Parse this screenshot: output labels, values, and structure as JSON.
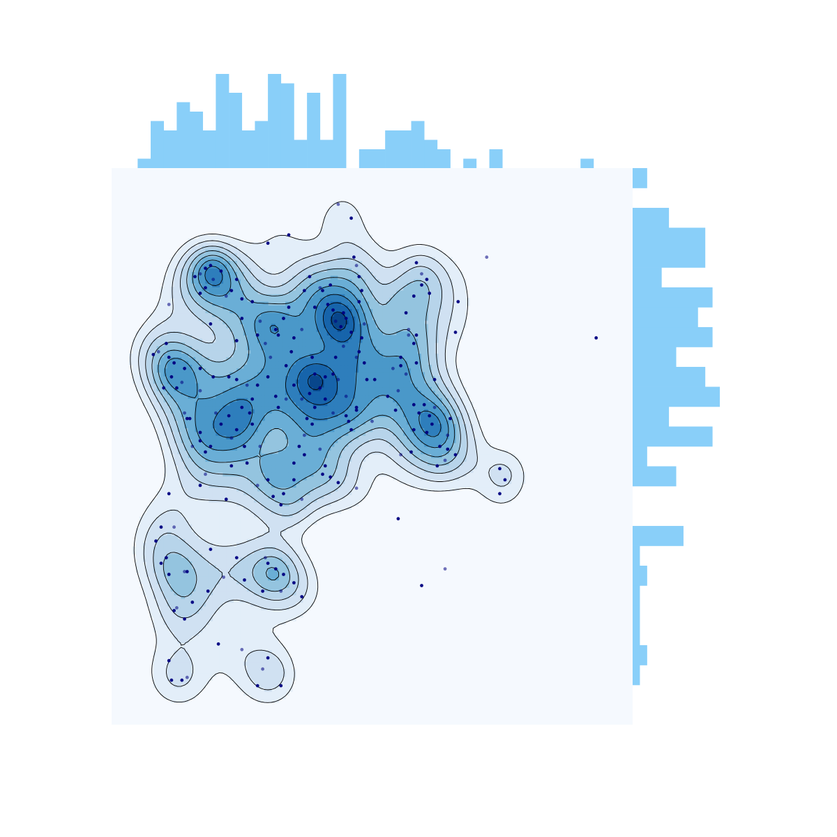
{
  "colors": {
    "marginal_bars": "#89cff9",
    "plot_background": "#f5f9fe",
    "contour_line": "#000000",
    "contour_fills": [
      "#e3eef9",
      "#d0e1f2",
      "#b7d4ea",
      "#94c4df",
      "#6aaed6",
      "#4a98c9",
      "#2e7ebc",
      "#1764ab",
      "#08468b"
    ],
    "points": "#000080"
  },
  "chart_data": {
    "type": "kde-jointplot",
    "title": "",
    "xlabel": "",
    "ylabel": "",
    "axes_visible": false,
    "grid": false,
    "legend": "none",
    "xlim": [
      0,
      100
    ],
    "ylim": [
      0,
      100
    ],
    "marginal_x": {
      "bin_edges": [
        5,
        7.5,
        10,
        12.5,
        15,
        17.5,
        20,
        22.5,
        25,
        27.5,
        30,
        32.5,
        35,
        37.5,
        40,
        42.5,
        45,
        47.5,
        50,
        52.5,
        55,
        57.5,
        60,
        62.5,
        65,
        67.5,
        70,
        72.5,
        75,
        77.5,
        80,
        82.5,
        85,
        87.5,
        90,
        92.5
      ],
      "counts": [
        1,
        5,
        4,
        7,
        6,
        4,
        10,
        8,
        4,
        5,
        10,
        9,
        3,
        8,
        3,
        10,
        0,
        2,
        2,
        4,
        4,
        5,
        3,
        2,
        0,
        1,
        0,
        2,
        0,
        0,
        0,
        0,
        0,
        0,
        1
      ]
    },
    "marginal_y": {
      "bin_edges": [
        0,
        3.57,
        7.14,
        10.71,
        14.29,
        17.86,
        21.43,
        25,
        28.57,
        32.14,
        35.71,
        39.29,
        42.86,
        46.43,
        50,
        53.57,
        57.14,
        60.71,
        64.29,
        67.86,
        71.43,
        75,
        78.57,
        82.14,
        85.71,
        89.29,
        92.86,
        96.43,
        100
      ],
      "counts": [
        0,
        0,
        1,
        2,
        1,
        1,
        1,
        2,
        1,
        7,
        0,
        0,
        6,
        2,
        11,
        5,
        12,
        10,
        6,
        11,
        9,
        11,
        4,
        10,
        10,
        5,
        0,
        2
      ]
    },
    "density_peaks": [
      {
        "x": 19.5,
        "y": 82,
        "weight": 1.0
      },
      {
        "x": 43.5,
        "y": 72.5,
        "weight": 1.0
      },
      {
        "x": 38.5,
        "y": 62.5,
        "weight": 0.9
      },
      {
        "x": 30.5,
        "y": 72.5,
        "weight": 0.5
      },
      {
        "x": 12.5,
        "y": 63.5,
        "weight": 0.55
      },
      {
        "x": 24,
        "y": 55,
        "weight": 0.55
      },
      {
        "x": 31.5,
        "y": 46,
        "weight": 0.5
      },
      {
        "x": 35,
        "y": 38.5,
        "weight": 0.25
      },
      {
        "x": 31,
        "y": 27.5,
        "weight": 0.5
      },
      {
        "x": 12.5,
        "y": 27.5,
        "weight": 0.3
      },
      {
        "x": 31,
        "y": 9.5,
        "weight": 0.3
      },
      {
        "x": 55.5,
        "y": 76,
        "weight": 0.45
      },
      {
        "x": 62.5,
        "y": 54,
        "weight": 0.45
      },
      {
        "x": 75.5,
        "y": 45.5,
        "weight": 0.3
      },
      {
        "x": 43.5,
        "y": 90,
        "weight": 0.2
      }
    ],
    "points": [
      [
        43.5,
        93.5
      ],
      [
        34,
        88
      ],
      [
        30,
        86.5
      ],
      [
        18,
        82
      ],
      [
        17,
        81
      ],
      [
        19,
        82.5
      ],
      [
        21,
        81.5
      ],
      [
        16,
        80.5
      ],
      [
        19.5,
        80
      ],
      [
        24,
        80
      ],
      [
        23,
        78
      ],
      [
        18,
        78.5
      ],
      [
        22,
        77
      ],
      [
        17,
        77.5
      ],
      [
        25,
        76.5
      ],
      [
        27,
        76
      ],
      [
        11,
        75.5
      ],
      [
        42,
        79
      ],
      [
        38,
        80.5
      ],
      [
        37,
        78
      ],
      [
        40,
        78.5
      ],
      [
        41.5,
        75.5
      ],
      [
        42.5,
        74.5
      ],
      [
        44.5,
        74
      ],
      [
        43,
        72.5
      ],
      [
        44,
        71.5
      ],
      [
        45,
        73
      ],
      [
        46,
        70.5
      ],
      [
        47,
        66
      ],
      [
        34,
        75
      ],
      [
        33,
        73
      ],
      [
        31.5,
        71
      ],
      [
        28.5,
        72.5
      ],
      [
        25,
        73
      ],
      [
        19,
        72
      ],
      [
        28,
        70
      ],
      [
        29.5,
        68.5
      ],
      [
        32,
        70
      ],
      [
        24,
        69
      ],
      [
        35,
        69.5
      ],
      [
        36.5,
        71
      ],
      [
        38.5,
        66
      ],
      [
        34.5,
        67
      ],
      [
        33.5,
        64.5
      ],
      [
        30.5,
        66
      ],
      [
        39,
        63
      ],
      [
        41,
        62.5
      ],
      [
        42.5,
        63
      ],
      [
        43.5,
        62
      ],
      [
        40,
        60.5
      ],
      [
        38,
        59.5
      ],
      [
        35,
        61
      ],
      [
        36.5,
        58.5
      ],
      [
        41,
        58.5
      ],
      [
        39,
        57
      ],
      [
        37.5,
        55
      ],
      [
        42.5,
        56
      ],
      [
        45,
        55.5
      ],
      [
        46,
        53
      ],
      [
        47,
        57
      ],
      [
        45,
        59
      ],
      [
        48.5,
        65
      ],
      [
        49,
        62
      ],
      [
        38.5,
        54
      ],
      [
        37,
        52
      ],
      [
        36,
        50
      ],
      [
        37,
        48.5
      ],
      [
        35,
        47
      ],
      [
        40,
        49.5
      ],
      [
        41,
        46.5
      ],
      [
        42,
        44.5
      ],
      [
        40.5,
        45
      ],
      [
        47,
        42.5
      ],
      [
        43.5,
        43.5
      ],
      [
        35,
        44
      ],
      [
        30,
        44
      ],
      [
        28,
        43
      ],
      [
        31,
        41
      ],
      [
        33,
        41.5
      ],
      [
        32.5,
        39.5
      ],
      [
        36.5,
        40.5
      ],
      [
        25,
        57
      ],
      [
        22.5,
        55.5
      ],
      [
        21,
        54
      ],
      [
        20,
        56
      ],
      [
        26.5,
        56
      ],
      [
        27,
        54
      ],
      [
        24,
        53
      ],
      [
        23,
        51.5
      ],
      [
        19,
        50
      ],
      [
        17,
        52.5
      ],
      [
        15,
        55
      ],
      [
        14,
        56
      ],
      [
        11.5,
        62.5
      ],
      [
        11,
        66
      ],
      [
        12,
        65
      ],
      [
        13.5,
        61.5
      ],
      [
        14,
        64
      ],
      [
        12.5,
        60.5
      ],
      [
        10,
        60.5
      ],
      [
        9,
        67
      ],
      [
        8,
        66.5
      ],
      [
        10.5,
        68.5
      ],
      [
        17,
        64
      ],
      [
        17,
        60
      ],
      [
        19.5,
        62.5
      ],
      [
        22.5,
        62.5
      ],
      [
        24,
        62
      ],
      [
        26,
        61
      ],
      [
        28,
        61
      ],
      [
        30,
        62.5
      ],
      [
        31.5,
        59
      ],
      [
        33.5,
        58.5
      ],
      [
        27,
        58.5
      ],
      [
        32,
        57
      ],
      [
        14.5,
        55
      ],
      [
        15.5,
        50
      ],
      [
        18,
        49
      ],
      [
        17,
        51
      ],
      [
        25.5,
        50
      ],
      [
        28.5,
        50
      ],
      [
        26,
        47
      ],
      [
        23,
        46.5
      ],
      [
        22,
        40.5
      ],
      [
        18,
        45
      ],
      [
        17,
        43
      ],
      [
        11,
        41.5
      ],
      [
        9.5,
        35.5
      ],
      [
        12,
        35.5
      ],
      [
        10.5,
        30
      ],
      [
        8.5,
        33
      ],
      [
        11,
        27
      ],
      [
        14,
        27.5
      ],
      [
        14.5,
        27.5
      ],
      [
        9.5,
        29
      ],
      [
        12,
        20.5
      ],
      [
        12.5,
        21
      ],
      [
        14,
        19
      ],
      [
        15.5,
        22
      ],
      [
        19,
        31.5
      ],
      [
        21.5,
        26.5
      ],
      [
        18.5,
        24
      ],
      [
        24,
        30
      ],
      [
        25.5,
        26
      ],
      [
        29.5,
        30
      ],
      [
        30,
        29
      ],
      [
        31.5,
        28
      ],
      [
        33,
        27
      ],
      [
        32.5,
        24
      ],
      [
        29,
        24
      ],
      [
        35,
        25.5
      ],
      [
        36.5,
        23
      ],
      [
        29,
        10
      ],
      [
        30,
        12
      ],
      [
        32.5,
        7
      ],
      [
        28,
        7
      ],
      [
        25,
        13.5
      ],
      [
        20.5,
        14.5
      ],
      [
        13.5,
        8
      ],
      [
        11.5,
        8
      ],
      [
        14.5,
        8.5
      ],
      [
        11,
        11.5
      ],
      [
        46,
        91
      ],
      [
        46.5,
        84
      ],
      [
        47,
        82.5
      ],
      [
        47.5,
        80.5
      ],
      [
        48,
        78
      ],
      [
        47.5,
        76
      ],
      [
        48.5,
        72
      ],
      [
        48,
        69.5
      ],
      [
        47.5,
        67
      ],
      [
        50.5,
        62
      ],
      [
        54,
        64
      ],
      [
        55.5,
        64.5
      ],
      [
        53,
        59
      ],
      [
        54.5,
        56.5
      ],
      [
        55.5,
        48.5
      ],
      [
        55,
        37
      ],
      [
        58,
        57.5
      ],
      [
        60,
        57.5
      ],
      [
        62,
        57
      ],
      [
        61.5,
        54
      ],
      [
        60.5,
        52.5
      ],
      [
        65,
        55
      ],
      [
        64.5,
        52
      ],
      [
        66,
        48.5
      ],
      [
        64.5,
        49.5
      ],
      [
        63,
        50
      ],
      [
        64,
        47.5
      ],
      [
        62.5,
        46.5
      ],
      [
        58,
        53
      ],
      [
        57.5,
        49
      ],
      [
        50,
        54.5
      ],
      [
        47,
        56.5
      ],
      [
        45.5,
        54.5
      ],
      [
        56.5,
        74
      ],
      [
        57,
        71
      ],
      [
        58.5,
        70
      ],
      [
        58,
        77
      ],
      [
        59.5,
        79
      ],
      [
        59.5,
        81
      ],
      [
        58.5,
        83
      ],
      [
        60.5,
        80
      ],
      [
        61,
        77.5
      ],
      [
        57,
        70
      ],
      [
        58,
        68.5
      ],
      [
        58.5,
        65
      ],
      [
        55.5,
        66
      ],
      [
        56.5,
        63
      ],
      [
        62,
        62
      ],
      [
        66,
        70.5
      ],
      [
        66.5,
        76
      ],
      [
        72,
        84
      ],
      [
        74.5,
        46
      ],
      [
        74.5,
        41.5
      ],
      [
        75.5,
        44
      ],
      [
        64,
        28
      ],
      [
        59.5,
        25
      ],
      [
        93,
        69.5
      ],
      [
        59,
        56
      ],
      [
        55,
        60
      ],
      [
        61,
        55.5
      ],
      [
        40.5,
        78
      ],
      [
        39,
        75
      ],
      [
        44.5,
        68
      ],
      [
        43,
        66
      ]
    ]
  }
}
